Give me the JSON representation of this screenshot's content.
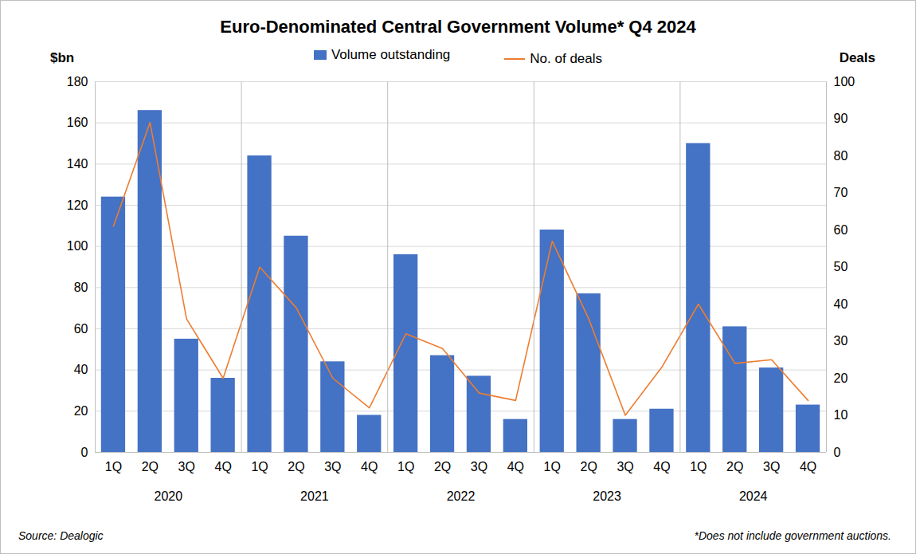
{
  "chart_data": {
    "type": "bar",
    "title": "Euro-Denominated Central Government Volume* Q4 2024",
    "categories": [
      "1Q",
      "2Q",
      "3Q",
      "4Q",
      "1Q",
      "2Q",
      "3Q",
      "4Q",
      "1Q",
      "2Q",
      "3Q",
      "4Q",
      "1Q",
      "2Q",
      "3Q",
      "4Q",
      "1Q",
      "2Q",
      "3Q",
      "4Q"
    ],
    "year_labels": [
      "2020",
      "2021",
      "2022",
      "2023",
      "2024"
    ],
    "series": [
      {
        "name": "Volume outstanding",
        "type": "bar",
        "color": "#4472c4",
        "values": [
          124,
          166,
          55,
          36,
          144,
          105,
          44,
          18,
          96,
          47,
          37,
          16,
          108,
          77,
          16,
          21,
          150,
          61,
          41,
          23
        ]
      },
      {
        "name": "No. of deals",
        "type": "line",
        "color": "#ed7d31",
        "axis": "y2",
        "values": [
          61,
          89,
          36,
          20,
          50,
          39,
          20,
          12,
          32,
          28,
          16,
          14,
          57,
          36,
          10,
          23,
          40,
          24,
          25,
          14
        ]
      }
    ],
    "y_label": "$bn",
    "y2_label": "Deals",
    "ylim": [
      0,
      180
    ],
    "yticks": [
      0,
      20,
      40,
      60,
      80,
      100,
      120,
      140,
      160,
      180
    ],
    "y2lim": [
      0,
      100
    ],
    "y2ticks": [
      0,
      10,
      20,
      30,
      40,
      50,
      60,
      70,
      80,
      90,
      100
    ],
    "grid": true,
    "legend": "top",
    "source": "Source: Dealogic",
    "footnote": "*Does not include government auctions."
  }
}
